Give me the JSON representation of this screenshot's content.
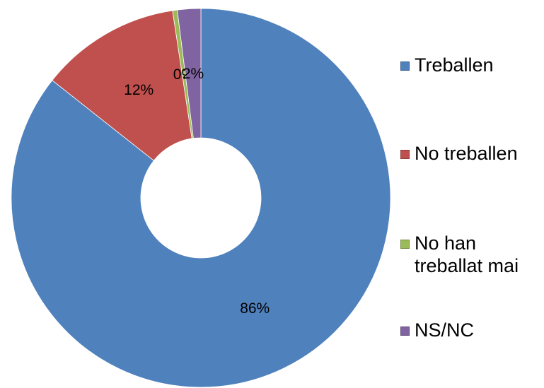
{
  "chart_data": {
    "type": "donut",
    "categories": [
      "Treballen",
      "No treballen",
      "No han treballat mai",
      "NS/NC"
    ],
    "values": [
      86,
      12,
      0.4,
      2
    ],
    "value_labels": [
      "86%",
      "12%",
      "0%",
      "2%"
    ],
    "colors": [
      "#4f81bd",
      "#c0504d",
      "#9bbb59",
      "#8064a2"
    ],
    "legend": "right"
  }
}
